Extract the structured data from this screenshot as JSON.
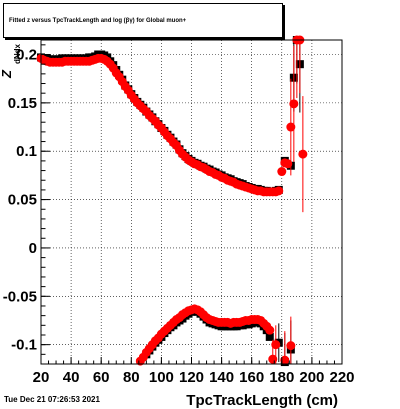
{
  "chart_data": {
    "type": "scatter",
    "title": "Fitted  z        versus TpcTrackLength and log   (βγ) for Global muon+",
    "xlabel": "TpcTrackLength (cm)",
    "ylabel": "Z",
    "ylabel_extra": "dNdx",
    "xlim": [
      20,
      220
    ],
    "ylim": [
      -0.12,
      0.215
    ],
    "grid": true,
    "x_ticks": [
      "20",
      "40",
      "60",
      "80",
      "100",
      "120",
      "140",
      "160",
      "180",
      "200",
      "220"
    ],
    "y_ticks": [
      {
        "v": 0.2,
        "label": "0.2"
      },
      {
        "v": 0.15,
        "label": "0.15"
      },
      {
        "v": 0.1,
        "label": "0.1"
      },
      {
        "v": 0.05,
        "label": "0.05"
      },
      {
        "v": 0,
        "label": "0"
      },
      {
        "v": -0.05,
        "label": "-0.05"
      },
      {
        "v": -0.1,
        "label": "-0.1"
      }
    ],
    "series": [
      {
        "color": "#000000",
        "marker": "square",
        "points": [
          [
            20,
            0.197
          ],
          [
            22,
            0.196
          ],
          [
            24,
            0.196
          ],
          [
            26,
            0.195
          ],
          [
            28,
            0.195
          ],
          [
            30,
            0.195
          ],
          [
            32,
            0.195
          ],
          [
            34,
            0.196
          ],
          [
            36,
            0.196
          ],
          [
            38,
            0.196
          ],
          [
            40,
            0.196
          ],
          [
            42,
            0.196
          ],
          [
            44,
            0.196
          ],
          [
            46,
            0.196
          ],
          [
            48,
            0.196
          ],
          [
            50,
            0.196
          ],
          [
            52,
            0.197
          ],
          [
            54,
            0.197
          ],
          [
            56,
            0.198
          ],
          [
            58,
            0.2
          ],
          [
            60,
            0.2
          ],
          [
            62,
            0.199
          ],
          [
            64,
            0.197
          ],
          [
            66,
            0.193
          ],
          [
            68,
            0.189
          ],
          [
            70,
            0.184
          ],
          [
            72,
            0.179
          ],
          [
            74,
            0.174
          ],
          [
            76,
            0.168
          ],
          [
            78,
            0.164
          ],
          [
            80,
            0.159
          ],
          [
            82,
            0.155
          ],
          [
            84,
            0.151
          ],
          [
            86,
            0.148
          ],
          [
            88,
            0.145
          ],
          [
            90,
            0.141
          ],
          [
            92,
            0.138
          ],
          [
            94,
            0.135
          ],
          [
            96,
            0.131
          ],
          [
            98,
            0.128
          ],
          [
            100,
            0.124
          ],
          [
            102,
            0.121
          ],
          [
            104,
            0.117
          ],
          [
            106,
            0.114
          ],
          [
            108,
            0.11
          ],
          [
            110,
            0.107
          ],
          [
            112,
            0.102
          ],
          [
            114,
            0.098
          ],
          [
            116,
            0.095
          ],
          [
            118,
            0.092
          ],
          [
            120,
            0.09
          ],
          [
            122,
            0.088
          ],
          [
            124,
            0.087
          ],
          [
            126,
            0.085
          ],
          [
            128,
            0.084
          ],
          [
            130,
            0.082
          ],
          [
            132,
            0.081
          ],
          [
            134,
            0.079
          ],
          [
            136,
            0.078
          ],
          [
            138,
            0.076
          ],
          [
            140,
            0.075
          ],
          [
            142,
            0.073
          ],
          [
            144,
            0.072
          ],
          [
            146,
            0.071
          ],
          [
            148,
            0.069
          ],
          [
            150,
            0.068
          ],
          [
            152,
            0.067
          ],
          [
            154,
            0.066
          ],
          [
            156,
            0.064
          ],
          [
            158,
            0.063
          ],
          [
            160,
            0.062
          ],
          [
            162,
            0.061
          ],
          [
            164,
            0.061
          ],
          [
            166,
            0.06
          ],
          [
            168,
            0.059
          ],
          [
            170,
            0.059
          ],
          [
            172,
            0.058
          ],
          [
            174,
            0.058
          ],
          [
            176,
            0.059
          ],
          [
            178,
            0.06
          ],
          [
            182,
            0.09
          ],
          [
            186,
            0.085
          ],
          [
            188,
            0.176
          ],
          [
            190,
            0.22
          ],
          [
            192,
            0.19
          ]
        ],
        "errors": [
          [
            188,
            0.035
          ],
          [
            190,
            0.05
          ],
          [
            192,
            0.05
          ]
        ]
      },
      {
        "color": "#000000",
        "marker": "square",
        "points": [
          [
            90,
            -0.11
          ],
          [
            92,
            -0.106
          ],
          [
            94,
            -0.102
          ],
          [
            96,
            -0.098
          ],
          [
            98,
            -0.095
          ],
          [
            100,
            -0.092
          ],
          [
            102,
            -0.088
          ],
          [
            104,
            -0.085
          ],
          [
            106,
            -0.082
          ],
          [
            108,
            -0.08
          ],
          [
            110,
            -0.077
          ],
          [
            112,
            -0.075
          ],
          [
            114,
            -0.073
          ],
          [
            116,
            -0.07
          ],
          [
            118,
            -0.068
          ],
          [
            120,
            -0.066
          ],
          [
            122,
            -0.065
          ],
          [
            124,
            -0.066
          ],
          [
            126,
            -0.068
          ],
          [
            128,
            -0.071
          ],
          [
            130,
            -0.074
          ],
          [
            132,
            -0.077
          ],
          [
            134,
            -0.078
          ],
          [
            136,
            -0.079
          ],
          [
            138,
            -0.08
          ],
          [
            140,
            -0.081
          ],
          [
            142,
            -0.081
          ],
          [
            144,
            -0.081
          ],
          [
            146,
            -0.081
          ],
          [
            148,
            -0.081
          ],
          [
            150,
            -0.081
          ],
          [
            152,
            -0.08
          ],
          [
            154,
            -0.08
          ],
          [
            156,
            -0.079
          ],
          [
            158,
            -0.079
          ],
          [
            160,
            -0.078
          ],
          [
            162,
            -0.077
          ],
          [
            164,
            -0.077
          ],
          [
            166,
            -0.078
          ],
          [
            168,
            -0.081
          ],
          [
            170,
            -0.085
          ],
          [
            172,
            -0.092
          ],
          [
            178,
            -0.098
          ],
          [
            182,
            -0.118
          ],
          [
            186,
            -0.105
          ]
        ],
        "errors": [
          [
            178,
            0.02
          ],
          [
            182,
            0.03
          ],
          [
            186,
            0.03
          ]
        ]
      },
      {
        "color": "#ff0000",
        "marker": "circle",
        "points": [
          [
            20,
            0.196
          ],
          [
            22,
            0.194
          ],
          [
            24,
            0.193
          ],
          [
            26,
            0.192
          ],
          [
            28,
            0.192
          ],
          [
            30,
            0.192
          ],
          [
            32,
            0.192
          ],
          [
            34,
            0.192
          ],
          [
            36,
            0.193
          ],
          [
            38,
            0.193
          ],
          [
            40,
            0.193
          ],
          [
            42,
            0.193
          ],
          [
            44,
            0.193
          ],
          [
            46,
            0.193
          ],
          [
            48,
            0.193
          ],
          [
            50,
            0.193
          ],
          [
            52,
            0.193
          ],
          [
            54,
            0.194
          ],
          [
            56,
            0.195
          ],
          [
            58,
            0.196
          ],
          [
            60,
            0.196
          ],
          [
            62,
            0.195
          ],
          [
            64,
            0.193
          ],
          [
            66,
            0.19
          ],
          [
            68,
            0.186
          ],
          [
            70,
            0.181
          ],
          [
            72,
            0.177
          ],
          [
            74,
            0.172
          ],
          [
            76,
            0.167
          ],
          [
            78,
            0.163
          ],
          [
            80,
            0.158
          ],
          [
            82,
            0.154
          ],
          [
            84,
            0.15
          ],
          [
            86,
            0.147
          ],
          [
            88,
            0.144
          ],
          [
            90,
            0.141
          ],
          [
            92,
            0.137
          ],
          [
            94,
            0.134
          ],
          [
            96,
            0.131
          ],
          [
            98,
            0.127
          ],
          [
            100,
            0.124
          ],
          [
            102,
            0.12
          ],
          [
            104,
            0.116
          ],
          [
            106,
            0.113
          ],
          [
            108,
            0.109
          ],
          [
            110,
            0.106
          ],
          [
            112,
            0.101
          ],
          [
            114,
            0.097
          ],
          [
            116,
            0.094
          ],
          [
            118,
            0.091
          ],
          [
            120,
            0.089
          ],
          [
            122,
            0.087
          ],
          [
            124,
            0.086
          ],
          [
            126,
            0.084
          ],
          [
            128,
            0.083
          ],
          [
            130,
            0.081
          ],
          [
            132,
            0.079
          ],
          [
            134,
            0.078
          ],
          [
            136,
            0.076
          ],
          [
            138,
            0.075
          ],
          [
            140,
            0.073
          ],
          [
            142,
            0.072
          ],
          [
            144,
            0.07
          ],
          [
            146,
            0.069
          ],
          [
            148,
            0.068
          ],
          [
            150,
            0.066
          ],
          [
            152,
            0.065
          ],
          [
            154,
            0.064
          ],
          [
            156,
            0.063
          ],
          [
            158,
            0.062
          ],
          [
            160,
            0.061
          ],
          [
            162,
            0.06
          ],
          [
            164,
            0.059
          ],
          [
            166,
            0.059
          ],
          [
            168,
            0.058
          ],
          [
            170,
            0.058
          ],
          [
            172,
            0.058
          ],
          [
            174,
            0.058
          ],
          [
            176,
            0.058
          ],
          [
            178,
            0.059
          ],
          [
            180,
            0.079
          ],
          [
            182,
            0.088
          ],
          [
            184,
            0.087
          ],
          [
            186,
            0.125
          ],
          [
            188,
            0.149
          ],
          [
            190,
            0.235
          ],
          [
            192,
            0.22
          ],
          [
            194,
            0.097
          ]
        ],
        "errors": [
          [
            186,
            0.05
          ],
          [
            188,
            0.06
          ],
          [
            190,
            0.08
          ],
          [
            192,
            0.06
          ],
          [
            194,
            0.06
          ]
        ]
      },
      {
        "color": "#ff0000",
        "marker": "circle",
        "points": [
          [
            86,
            -0.117
          ],
          [
            88,
            -0.113
          ],
          [
            90,
            -0.108
          ],
          [
            92,
            -0.104
          ],
          [
            94,
            -0.1
          ],
          [
            96,
            -0.096
          ],
          [
            98,
            -0.093
          ],
          [
            100,
            -0.089
          ],
          [
            102,
            -0.086
          ],
          [
            104,
            -0.083
          ],
          [
            106,
            -0.08
          ],
          [
            108,
            -0.077
          ],
          [
            110,
            -0.074
          ],
          [
            112,
            -0.072
          ],
          [
            114,
            -0.069
          ],
          [
            116,
            -0.067
          ],
          [
            118,
            -0.065
          ],
          [
            120,
            -0.064
          ],
          [
            122,
            -0.063
          ],
          [
            124,
            -0.064
          ],
          [
            126,
            -0.066
          ],
          [
            128,
            -0.069
          ],
          [
            130,
            -0.072
          ],
          [
            132,
            -0.074
          ],
          [
            134,
            -0.075
          ],
          [
            136,
            -0.076
          ],
          [
            138,
            -0.077
          ],
          [
            140,
            -0.077
          ],
          [
            142,
            -0.077
          ],
          [
            144,
            -0.077
          ],
          [
            146,
            -0.078
          ],
          [
            148,
            -0.077
          ],
          [
            150,
            -0.077
          ],
          [
            152,
            -0.077
          ],
          [
            154,
            -0.076
          ],
          [
            156,
            -0.075
          ],
          [
            158,
            -0.075
          ],
          [
            160,
            -0.074
          ],
          [
            162,
            -0.074
          ],
          [
            164,
            -0.074
          ],
          [
            166,
            -0.075
          ],
          [
            168,
            -0.078
          ],
          [
            170,
            -0.081
          ],
          [
            172,
            -0.085
          ],
          [
            174,
            -0.115
          ],
          [
            176,
            -0.1
          ],
          [
            182,
            -0.116
          ],
          [
            186,
            -0.101
          ]
        ],
        "errors": [
          [
            174,
            0.02
          ],
          [
            176,
            0.02
          ],
          [
            182,
            0.03
          ],
          [
            186,
            0.03
          ]
        ]
      }
    ]
  },
  "footer": {
    "timestamp": "Tue Dec 21 07:26:53 2021"
  }
}
